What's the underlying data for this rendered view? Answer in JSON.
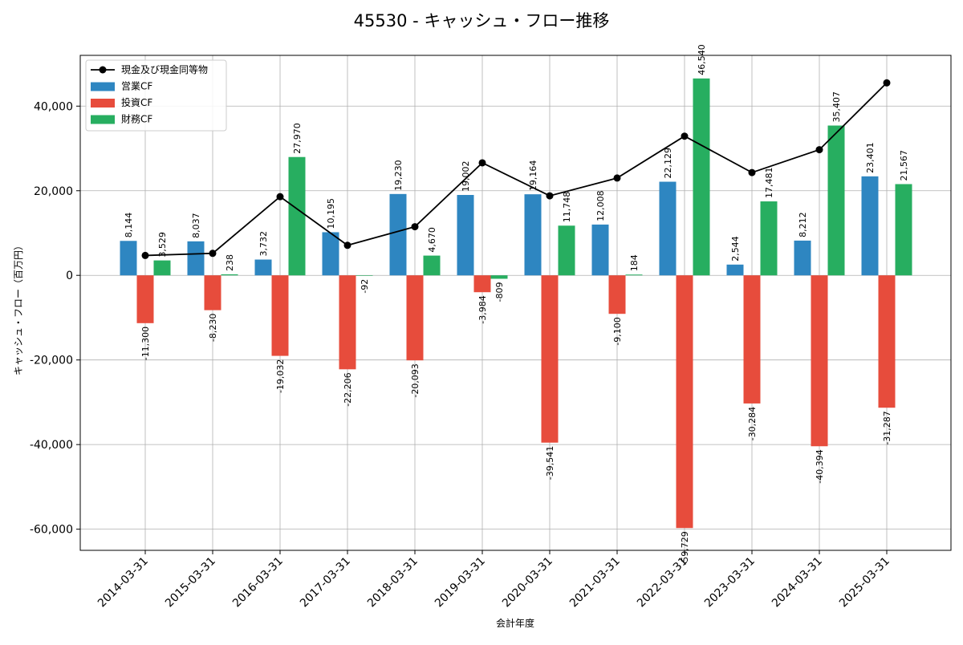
{
  "chart_data": {
    "type": "bar",
    "title": "45530 - キャッシュ・フロー推移",
    "xlabel": "会計年度",
    "ylabel": "キャッシュ・フロー（百万円）",
    "categories": [
      "2014-03-31",
      "2015-03-31",
      "2016-03-31",
      "2017-03-31",
      "2018-03-31",
      "2019-03-31",
      "2020-03-31",
      "2021-03-31",
      "2022-03-31",
      "2023-03-31",
      "2024-03-31",
      "2025-03-31"
    ],
    "ylim": [
      -65000,
      52000
    ],
    "yticks": [
      -60000,
      -40000,
      -20000,
      0,
      20000,
      40000
    ],
    "ytick_labels": [
      "-60,000",
      "-40,000",
      "-20,000",
      "0",
      "20,000",
      "40,000"
    ],
    "grid": true,
    "legend_position": "top-left",
    "series": [
      {
        "name": "営業CF",
        "kind": "bar",
        "color": "#2e86c1",
        "values": [
          8144,
          8037,
          3732,
          10195,
          19230,
          19002,
          19164,
          12008,
          22129,
          2544,
          8212,
          23401
        ],
        "labels": [
          "8,144",
          "8,037",
          "3,732",
          "10,195",
          "19,230",
          "19,002",
          "19,164",
          "12,008",
          "22,129",
          "2,544",
          "8,212",
          "23,401"
        ]
      },
      {
        "name": "投資CF",
        "kind": "bar",
        "color": "#e74c3c",
        "values": [
          -11300,
          -8230,
          -19032,
          -22206,
          -20093,
          -3984,
          -39541,
          -9100,
          -59729,
          -30284,
          -40394,
          -31287
        ],
        "labels": [
          "-11,300",
          "-8,230",
          "-19,032",
          "-22,206",
          "-20,093",
          "-3,984",
          "-39,541",
          "-9,100",
          "-59,729",
          "-30,284",
          "-40,394",
          "-31,287"
        ]
      },
      {
        "name": "財務CF",
        "kind": "bar",
        "color": "#27ae60",
        "values": [
          3529,
          238,
          27970,
          -92,
          4670,
          -809,
          11748,
          184,
          46540,
          17481,
          35407,
          21567
        ],
        "labels": [
          "3,529",
          "238",
          "27,970",
          "-92",
          "4,670",
          "-809",
          "11,748",
          "184",
          "46,540",
          "17,481",
          "35,407",
          "21,567"
        ]
      },
      {
        "name": "現金及び現金同等物",
        "kind": "line",
        "color": "#000000",
        "values": [
          4700,
          5200,
          18600,
          7100,
          11500,
          26600,
          18800,
          23000,
          32900,
          24300,
          29700,
          45500
        ]
      }
    ]
  }
}
